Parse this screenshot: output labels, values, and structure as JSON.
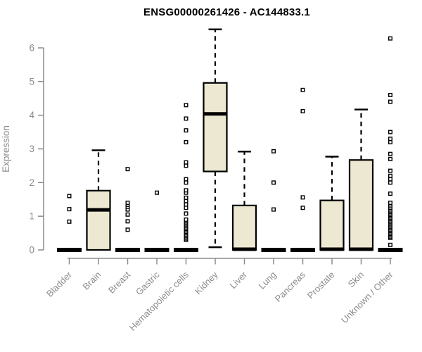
{
  "title": "ENSG00000261426 - AC144833.1",
  "chart_data": {
    "type": "boxplot",
    "title": "ENSG00000261426 - AC144833.1",
    "xlabel": "",
    "ylabel": "Expression",
    "ylim": [
      0,
      6.8
    ],
    "yticks": [
      0,
      1,
      2,
      3,
      4,
      5,
      6
    ],
    "grid": false,
    "legend": "none",
    "background": "#ffffff",
    "axis_color": "#8c8c8c",
    "text_color": "#8c8c8c",
    "box_fill": "#ede8d1",
    "box_stroke": "#000000",
    "categories": [
      "Bladder",
      "Brain",
      "Breast",
      "Gastric",
      "Hematopoietic cells",
      "Kidney",
      "Liver",
      "Lung",
      "Pancreas",
      "Prostate",
      "Skin",
      "Unknown / Other"
    ],
    "series": [
      {
        "label": "Bladder",
        "q1": 0,
        "median": 0,
        "q3": 0,
        "whisker_low": 0,
        "whisker_high": 0,
        "outliers": [
          0.84,
          1.21,
          1.6
        ]
      },
      {
        "label": "Brain",
        "q1": 0,
        "median": 1.19,
        "q3": 1.76,
        "whisker_low": 0,
        "whisker_high": 2.96,
        "outliers": []
      },
      {
        "label": "Breast",
        "q1": 0,
        "median": 0,
        "q3": 0,
        "whisker_low": 0,
        "whisker_high": 0,
        "outliers": [
          0.6,
          0.85,
          1.05,
          1.2,
          1.28,
          1.34,
          1.4,
          2.4
        ]
      },
      {
        "label": "Gastric",
        "q1": 0,
        "median": 0,
        "q3": 0,
        "whisker_low": 0,
        "whisker_high": 0,
        "outliers": [
          1.7
        ]
      },
      {
        "label": "Hematopoietic cells",
        "q1": 0,
        "median": 0,
        "q3": 0,
        "whisker_low": 0,
        "whisker_high": 0,
        "outliers": [
          0.3,
          0.34,
          0.38,
          0.42,
          0.46,
          0.5,
          0.54,
          0.58,
          0.62,
          0.66,
          0.7,
          0.74,
          0.78,
          0.82,
          0.86,
          0.9,
          1.08,
          1.25,
          1.35,
          1.45,
          1.55,
          1.7,
          1.77,
          2.0,
          2.1,
          2.5,
          2.6,
          3.2,
          3.55,
          3.9,
          4.3
        ]
      },
      {
        "label": "Kidney",
        "q1": 2.33,
        "median": 4.04,
        "q3": 4.96,
        "whisker_low": 0.08,
        "whisker_high": 6.55,
        "outliers": []
      },
      {
        "label": "Liver",
        "q1": 0,
        "median": 0.02,
        "q3": 1.32,
        "whisker_low": 0,
        "whisker_high": 2.92,
        "outliers": []
      },
      {
        "label": "Lung",
        "q1": 0,
        "median": 0,
        "q3": 0,
        "whisker_low": 0,
        "whisker_high": 0,
        "outliers": [
          1.2,
          2.0,
          2.93
        ]
      },
      {
        "label": "Pancreas",
        "q1": 0,
        "median": 0,
        "q3": 0,
        "whisker_low": 0,
        "whisker_high": 0,
        "outliers": [
          1.25,
          1.56,
          4.12,
          4.75
        ]
      },
      {
        "label": "Prostate",
        "q1": 0,
        "median": 0.02,
        "q3": 1.47,
        "whisker_low": 0,
        "whisker_high": 2.77,
        "outliers": []
      },
      {
        "label": "Skin",
        "q1": 0,
        "median": 0.02,
        "q3": 2.67,
        "whisker_low": 0,
        "whisker_high": 4.17,
        "outliers": []
      },
      {
        "label": "Unknown / Other",
        "q1": 0,
        "median": 0,
        "q3": 0,
        "whisker_low": 0,
        "whisker_high": 0,
        "outliers": [
          0.15,
          0.36,
          0.4,
          0.44,
          0.48,
          0.52,
          0.56,
          0.6,
          0.64,
          0.68,
          0.72,
          0.76,
          0.8,
          0.84,
          0.88,
          0.92,
          0.96,
          1.0,
          1.04,
          1.08,
          1.12,
          1.16,
          1.2,
          1.25,
          1.3,
          1.35,
          1.4,
          1.67,
          2.0,
          2.1,
          2.2,
          2.35,
          2.7,
          2.85,
          3.2,
          3.3,
          3.5,
          4.4,
          4.6,
          6.28
        ]
      }
    ]
  }
}
